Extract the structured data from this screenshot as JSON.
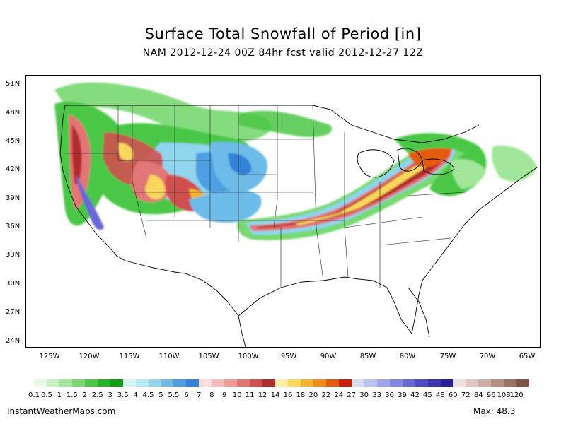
{
  "title": "Surface Total Snowfall of Period [in]",
  "subtitle": "NAM 2012-12-24 00Z 84hr fcst valid 2012-12-27 12Z",
  "lat_labels": [
    "51N",
    "48N",
    "45N",
    "42N",
    "39N",
    "36N",
    "33N",
    "30N",
    "27N",
    "24N"
  ],
  "lon_labels": [
    "125W",
    "120W",
    "115W",
    "110W",
    "105W",
    "100W",
    "95W",
    "90W",
    "85W",
    "80W",
    "75W",
    "70W",
    "65W"
  ],
  "colorbar": {
    "labels": [
      "0.1",
      "0.5",
      "1",
      "1.5",
      "2",
      "2.5",
      "3",
      "3.5",
      "4",
      "4.5",
      "5",
      "5.5",
      "6",
      "7",
      "8",
      "9",
      "10",
      "11",
      "12",
      "14",
      "16",
      "18",
      "20",
      "22",
      "24",
      "27",
      "30",
      "33",
      "36",
      "39",
      "42",
      "45",
      "48",
      "60",
      "72",
      "84",
      "96",
      "108",
      "120"
    ],
    "colors": [
      "#e8fbe6",
      "#c6f2c0",
      "#a1e69a",
      "#78d871",
      "#4cc746",
      "#28b324",
      "#119d10",
      "#d6f5f7",
      "#b3ebf2",
      "#8fd5ee",
      "#6cbbe8",
      "#4d9fe2",
      "#3282da",
      "#fcdcdc",
      "#f8bcbc",
      "#f09a9a",
      "#e27474",
      "#cf5050",
      "#b32c2c",
      "#fbeea0",
      "#f9d65c",
      "#f7b32e",
      "#f08b1c",
      "#e35b10",
      "#c81f06",
      "#d8dcf4",
      "#bcc2f0",
      "#9fa5ea",
      "#8286e2",
      "#6767d6",
      "#4d4cc4",
      "#3a35ad",
      "#2a1f96",
      "#efe2de",
      "#dfc8c0",
      "#cbaea3",
      "#b59185",
      "#9a7266",
      "#7e5447"
    ]
  },
  "footer": {
    "site": "InstantWeatherMaps.com",
    "max": "Max:  48.3"
  }
}
